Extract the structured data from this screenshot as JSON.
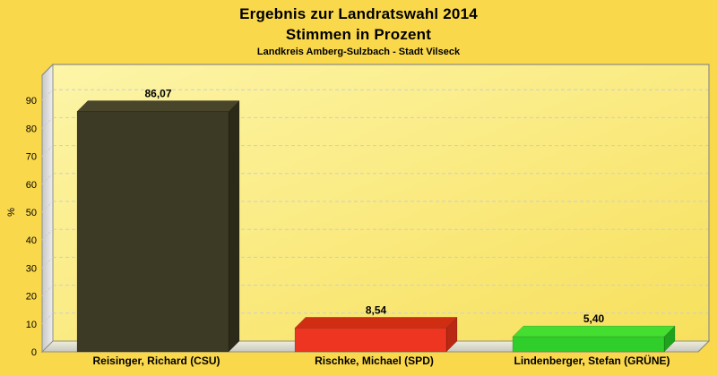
{
  "header": {
    "title_line1": "Ergebnis zur Landratswahl 2014",
    "title_line2": "Stimmen in Prozent",
    "subtitle": "Landkreis Amberg-Sulzbach - Stadt Vilseck"
  },
  "chart_data": {
    "type": "bar",
    "style": "3d-bar",
    "title": "Ergebnis zur Landratswahl 2014",
    "subtitle": "Stimmen in Prozent",
    "caption": "Landkreis Amberg-Sulzbach - Stadt Vilseck",
    "ylabel": "%",
    "ylim": [
      0,
      100
    ],
    "ytick_interval": 10,
    "yticks": [
      "0",
      "10",
      "20",
      "30",
      "40",
      "50",
      "60",
      "70",
      "80",
      "90"
    ],
    "grid": true,
    "legend": "none",
    "categories": [
      "Reisinger, Richard (CSU)",
      "Rischke, Michael (SPD)",
      "Lindenberger, Stefan (GRÜNE)"
    ],
    "values": [
      86.07,
      8.54,
      5.4
    ],
    "value_labels": [
      "86,07",
      "8,54",
      "5,40"
    ],
    "bars": [
      {
        "party": "CSU",
        "front": "#3C3A24",
        "top": "#48452B",
        "side": "#2B2917"
      },
      {
        "party": "SPD",
        "front": "#EE3521",
        "top": "#D02E13",
        "side": "#B82812"
      },
      {
        "party": "GRÜNE",
        "front": "#30CE2A",
        "top": "#44DE31",
        "side": "#1FA21C"
      }
    ],
    "colors": {
      "page_bg": "#FAD84C",
      "plot_bg_from": "#FDF5A8",
      "plot_bg_to": "#F7E05C",
      "wall_from": "#C7C7C7",
      "wall_to": "#EFEFEF",
      "floor_from": "#EFEDDA",
      "floor_to": "#C8C8C2",
      "grid": "#CDCDCD",
      "frame": "#8F8F85",
      "text": "#000000"
    }
  }
}
